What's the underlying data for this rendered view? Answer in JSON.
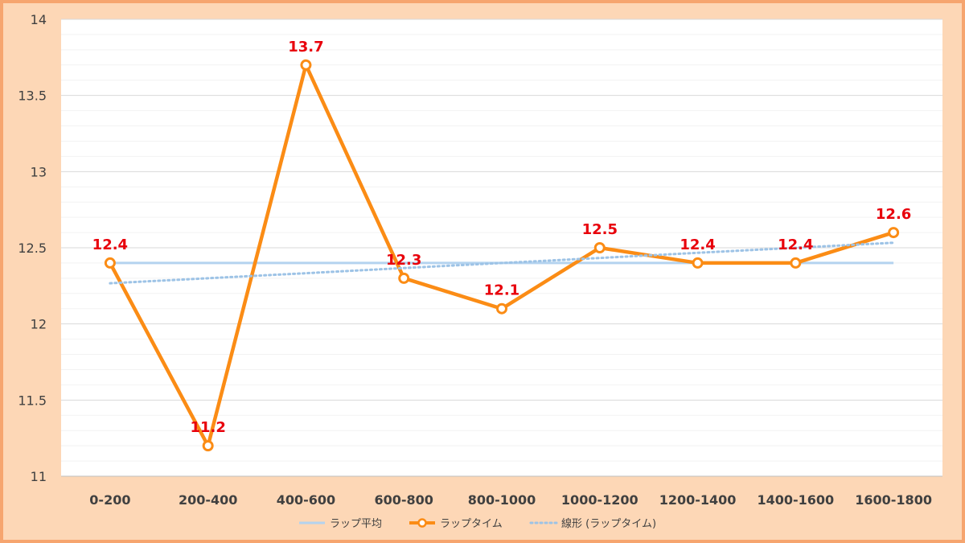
{
  "chart_data": {
    "type": "line",
    "categories": [
      "0-200",
      "200-400",
      "400-600",
      "600-800",
      "800-1000",
      "1000-1200",
      "1200-1400",
      "1400-1600",
      "1600-1800"
    ],
    "series": [
      {
        "name": "ラップ平均",
        "values": [
          12.4,
          12.4,
          12.4,
          12.4,
          12.4,
          12.4,
          12.4,
          12.4,
          12.4
        ],
        "color": "#b4d3ef",
        "style": "solid"
      },
      {
        "name": "ラップタイム",
        "values": [
          12.4,
          11.2,
          13.7,
          12.3,
          12.1,
          12.5,
          12.4,
          12.4,
          12.6
        ],
        "color": "#fb8c15",
        "style": "line-markers",
        "data_labels": [
          "12.4",
          "11.2",
          "13.7",
          "12.3",
          "12.1",
          "12.5",
          "12.4",
          "12.4",
          "12.6"
        ]
      },
      {
        "name": "線形 (ラップタイム)",
        "values": [
          12.267,
          12.3,
          12.333,
          12.367,
          12.4,
          12.433,
          12.467,
          12.5,
          12.533
        ],
        "color": "#9dc3e6",
        "style": "dotted"
      }
    ],
    "ylim": [
      11,
      14
    ],
    "yticks": [
      "11",
      "11.5",
      "12",
      "12.5",
      "13",
      "13.5",
      "14"
    ],
    "grid": true,
    "legend_position": "bottom",
    "data_label_color": "#e8000b"
  }
}
